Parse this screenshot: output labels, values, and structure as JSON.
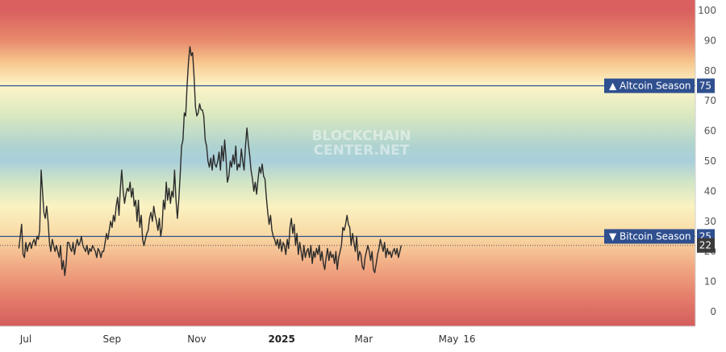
{
  "chart_data": {
    "type": "line",
    "title": "",
    "xlabel": "",
    "ylabel": "",
    "ylim": [
      -5,
      105
    ],
    "y_ticks": [
      0,
      10,
      20,
      30,
      40,
      50,
      60,
      70,
      80,
      90,
      100
    ],
    "x_ticks": [
      {
        "label": "Jul",
        "x": 0
      },
      {
        "label": "Sep",
        "x": 62
      },
      {
        "label": "Nov",
        "x": 123
      },
      {
        "label": "2025",
        "x": 184,
        "bold": true
      },
      {
        "label": "Mar",
        "x": 243
      },
      {
        "label": "May",
        "x": 304
      },
      {
        "label": "16",
        "x": 319
      }
    ],
    "x_range": [
      -5,
      355
    ],
    "levels": [
      {
        "name": "Altcoin Season",
        "value": 75,
        "arrow": "▲",
        "color": "#2f4f8f"
      },
      {
        "name": "Bitcoin Season",
        "value": 25,
        "arrow": "▼",
        "color": "#2f4f8f"
      }
    ],
    "current_value": 22,
    "background_gradient": [
      {
        "value": 100,
        "color": "#d9605f"
      },
      {
        "value": 90,
        "color": "#e88a6c"
      },
      {
        "value": 83,
        "color": "#f7c58d"
      },
      {
        "value": 75,
        "color": "#fdf5c8"
      },
      {
        "value": 65,
        "color": "#d9e8bf"
      },
      {
        "value": 55,
        "color": "#afd3d0"
      },
      {
        "value": 50,
        "color": "#a9cfdb"
      },
      {
        "value": 43,
        "color": "#d1e5c5"
      },
      {
        "value": 35,
        "color": "#fbf2c2"
      },
      {
        "value": 25,
        "color": "#f8d8a3"
      },
      {
        "value": 15,
        "color": "#f1a983"
      },
      {
        "value": 5,
        "color": "#e57e6b"
      },
      {
        "value": -5,
        "color": "#d45d5d"
      }
    ],
    "series": [
      {
        "line_color": "#2b2b2b",
        "points": [
          [
            -5,
            21
          ],
          [
            -3,
            29
          ],
          [
            -2,
            19
          ],
          [
            -1,
            18
          ],
          [
            0,
            23
          ],
          [
            1,
            20
          ],
          [
            2,
            22
          ],
          [
            3,
            23
          ],
          [
            4,
            21
          ],
          [
            5,
            23
          ],
          [
            6,
            24
          ],
          [
            7,
            22
          ],
          [
            8,
            25
          ],
          [
            9,
            24
          ],
          [
            10,
            27
          ],
          [
            11,
            47
          ],
          [
            12,
            40
          ],
          [
            13,
            33
          ],
          [
            14,
            31
          ],
          [
            15,
            35
          ],
          [
            16,
            30
          ],
          [
            17,
            23
          ],
          [
            18,
            20
          ],
          [
            19,
            24
          ],
          [
            20,
            22
          ],
          [
            21,
            20
          ],
          [
            22,
            22
          ],
          [
            23,
            20
          ],
          [
            24,
            18
          ],
          [
            25,
            22
          ],
          [
            26,
            14
          ],
          [
            27,
            17
          ],
          [
            28,
            12
          ],
          [
            29,
            16
          ],
          [
            30,
            23
          ],
          [
            31,
            23
          ],
          [
            32,
            21
          ],
          [
            33,
            20
          ],
          [
            34,
            23
          ],
          [
            35,
            19
          ],
          [
            36,
            22
          ],
          [
            37,
            24
          ],
          [
            38,
            22
          ],
          [
            39,
            23
          ],
          [
            40,
            25
          ],
          [
            41,
            22
          ],
          [
            42,
            21
          ],
          [
            43,
            20
          ],
          [
            44,
            22
          ],
          [
            45,
            19
          ],
          [
            46,
            21
          ],
          [
            47,
            20
          ],
          [
            48,
            22
          ],
          [
            49,
            21
          ],
          [
            50,
            20
          ],
          [
            51,
            18
          ],
          [
            52,
            21
          ],
          [
            53,
            20
          ],
          [
            54,
            18
          ],
          [
            55,
            20
          ],
          [
            56,
            20
          ],
          [
            57,
            23
          ],
          [
            58,
            26
          ],
          [
            59,
            24
          ],
          [
            60,
            27
          ],
          [
            61,
            30
          ],
          [
            62,
            28
          ],
          [
            63,
            32
          ],
          [
            64,
            30
          ],
          [
            65,
            35
          ],
          [
            66,
            38
          ],
          [
            67,
            32
          ],
          [
            68,
            41
          ],
          [
            69,
            47
          ],
          [
            70,
            40
          ],
          [
            71,
            36
          ],
          [
            72,
            39
          ],
          [
            73,
            41
          ],
          [
            74,
            40
          ],
          [
            75,
            43
          ],
          [
            76,
            38
          ],
          [
            77,
            41
          ],
          [
            78,
            35
          ],
          [
            79,
            37
          ],
          [
            80,
            30
          ],
          [
            81,
            37
          ],
          [
            82,
            28
          ],
          [
            83,
            32
          ],
          [
            84,
            24
          ],
          [
            85,
            22
          ],
          [
            86,
            24
          ],
          [
            87,
            26
          ],
          [
            88,
            27
          ],
          [
            89,
            31
          ],
          [
            90,
            33
          ],
          [
            91,
            30
          ],
          [
            92,
            35
          ],
          [
            93,
            32
          ],
          [
            94,
            30
          ],
          [
            95,
            27
          ],
          [
            96,
            31
          ],
          [
            97,
            25
          ],
          [
            98,
            28
          ],
          [
            99,
            37
          ],
          [
            100,
            34
          ],
          [
            101,
            43
          ],
          [
            102,
            37
          ],
          [
            103,
            41
          ],
          [
            104,
            36
          ],
          [
            105,
            40
          ],
          [
            106,
            38
          ],
          [
            107,
            47
          ],
          [
            108,
            37
          ],
          [
            109,
            31
          ],
          [
            110,
            37
          ],
          [
            111,
            45
          ],
          [
            112,
            55
          ],
          [
            113,
            57
          ],
          [
            114,
            66
          ],
          [
            115,
            65
          ],
          [
            116,
            75
          ],
          [
            117,
            83
          ],
          [
            118,
            88
          ],
          [
            119,
            85
          ],
          [
            120,
            86
          ],
          [
            121,
            78
          ],
          [
            122,
            68
          ],
          [
            123,
            65
          ],
          [
            124,
            66
          ],
          [
            125,
            69
          ],
          [
            126,
            67
          ],
          [
            127,
            67
          ],
          [
            128,
            65
          ],
          [
            129,
            57
          ],
          [
            130,
            55
          ],
          [
            131,
            50
          ],
          [
            132,
            48
          ],
          [
            133,
            51
          ],
          [
            134,
            47
          ],
          [
            135,
            52
          ],
          [
            136,
            49
          ],
          [
            137,
            48
          ],
          [
            138,
            50
          ],
          [
            139,
            53
          ],
          [
            140,
            47
          ],
          [
            141,
            55
          ],
          [
            142,
            50
          ],
          [
            143,
            57
          ],
          [
            144,
            51
          ],
          [
            145,
            43
          ],
          [
            146,
            45
          ],
          [
            147,
            50
          ],
          [
            148,
            48
          ],
          [
            149,
            52
          ],
          [
            150,
            49
          ],
          [
            151,
            55
          ],
          [
            152,
            47
          ],
          [
            153,
            49
          ],
          [
            154,
            48
          ],
          [
            155,
            54
          ],
          [
            156,
            50
          ],
          [
            157,
            47
          ],
          [
            158,
            55
          ],
          [
            159,
            61
          ],
          [
            160,
            56
          ],
          [
            161,
            52
          ],
          [
            162,
            47
          ],
          [
            163,
            44
          ],
          [
            164,
            40
          ],
          [
            165,
            43
          ],
          [
            166,
            39
          ],
          [
            167,
            44
          ],
          [
            168,
            48
          ],
          [
            169,
            46
          ],
          [
            170,
            49
          ],
          [
            171,
            45
          ],
          [
            172,
            44
          ],
          [
            173,
            38
          ],
          [
            174,
            33
          ],
          [
            175,
            29
          ],
          [
            176,
            32
          ],
          [
            177,
            27
          ],
          [
            178,
            25
          ],
          [
            179,
            24
          ],
          [
            180,
            22
          ],
          [
            181,
            24
          ],
          [
            182,
            21
          ],
          [
            183,
            24
          ],
          [
            184,
            20
          ],
          [
            185,
            23
          ],
          [
            186,
            22
          ],
          [
            187,
            19
          ],
          [
            188,
            24
          ],
          [
            189,
            21
          ],
          [
            190,
            28
          ],
          [
            191,
            31
          ],
          [
            192,
            26
          ],
          [
            193,
            29
          ],
          [
            194,
            22
          ],
          [
            195,
            26
          ],
          [
            196,
            19
          ],
          [
            197,
            23
          ],
          [
            198,
            20
          ],
          [
            199,
            17
          ],
          [
            200,
            22
          ],
          [
            201,
            18
          ],
          [
            202,
            20
          ],
          [
            203,
            21
          ],
          [
            204,
            18
          ],
          [
            205,
            22
          ],
          [
            206,
            16
          ],
          [
            207,
            20
          ],
          [
            208,
            18
          ],
          [
            209,
            21
          ],
          [
            210,
            19
          ],
          [
            211,
            22
          ],
          [
            212,
            17
          ],
          [
            213,
            20
          ],
          [
            214,
            16
          ],
          [
            215,
            14
          ],
          [
            216,
            18
          ],
          [
            217,
            21
          ],
          [
            218,
            17
          ],
          [
            219,
            20
          ],
          [
            220,
            18
          ],
          [
            221,
            19
          ],
          [
            222,
            16
          ],
          [
            223,
            20
          ],
          [
            224,
            14
          ],
          [
            225,
            18
          ],
          [
            226,
            20
          ],
          [
            227,
            22
          ],
          [
            228,
            28
          ],
          [
            229,
            27
          ],
          [
            230,
            29
          ],
          [
            231,
            32
          ],
          [
            232,
            29
          ],
          [
            233,
            28
          ],
          [
            234,
            22
          ],
          [
            235,
            26
          ],
          [
            236,
            23
          ],
          [
            237,
            20
          ],
          [
            238,
            25
          ],
          [
            239,
            17
          ],
          [
            240,
            20
          ],
          [
            241,
            19
          ],
          [
            242,
            15
          ],
          [
            243,
            14
          ],
          [
            244,
            18
          ],
          [
            245,
            20
          ],
          [
            246,
            22
          ],
          [
            247,
            20
          ],
          [
            248,
            17
          ],
          [
            249,
            20
          ],
          [
            250,
            14
          ],
          [
            251,
            13
          ],
          [
            252,
            16
          ],
          [
            253,
            19
          ],
          [
            254,
            21
          ],
          [
            255,
            24
          ],
          [
            256,
            22
          ],
          [
            257,
            20
          ],
          [
            258,
            23
          ],
          [
            259,
            18
          ],
          [
            260,
            21
          ],
          [
            261,
            19
          ],
          [
            262,
            20
          ],
          [
            263,
            18
          ],
          [
            264,
            20
          ],
          [
            265,
            21
          ],
          [
            266,
            19
          ],
          [
            267,
            21
          ],
          [
            268,
            18
          ],
          [
            269,
            20
          ],
          [
            270,
            22
          ]
        ]
      }
    ]
  },
  "watermark": {
    "line1": "BLOCKCHAIN",
    "line2": "CENTER.NET"
  }
}
